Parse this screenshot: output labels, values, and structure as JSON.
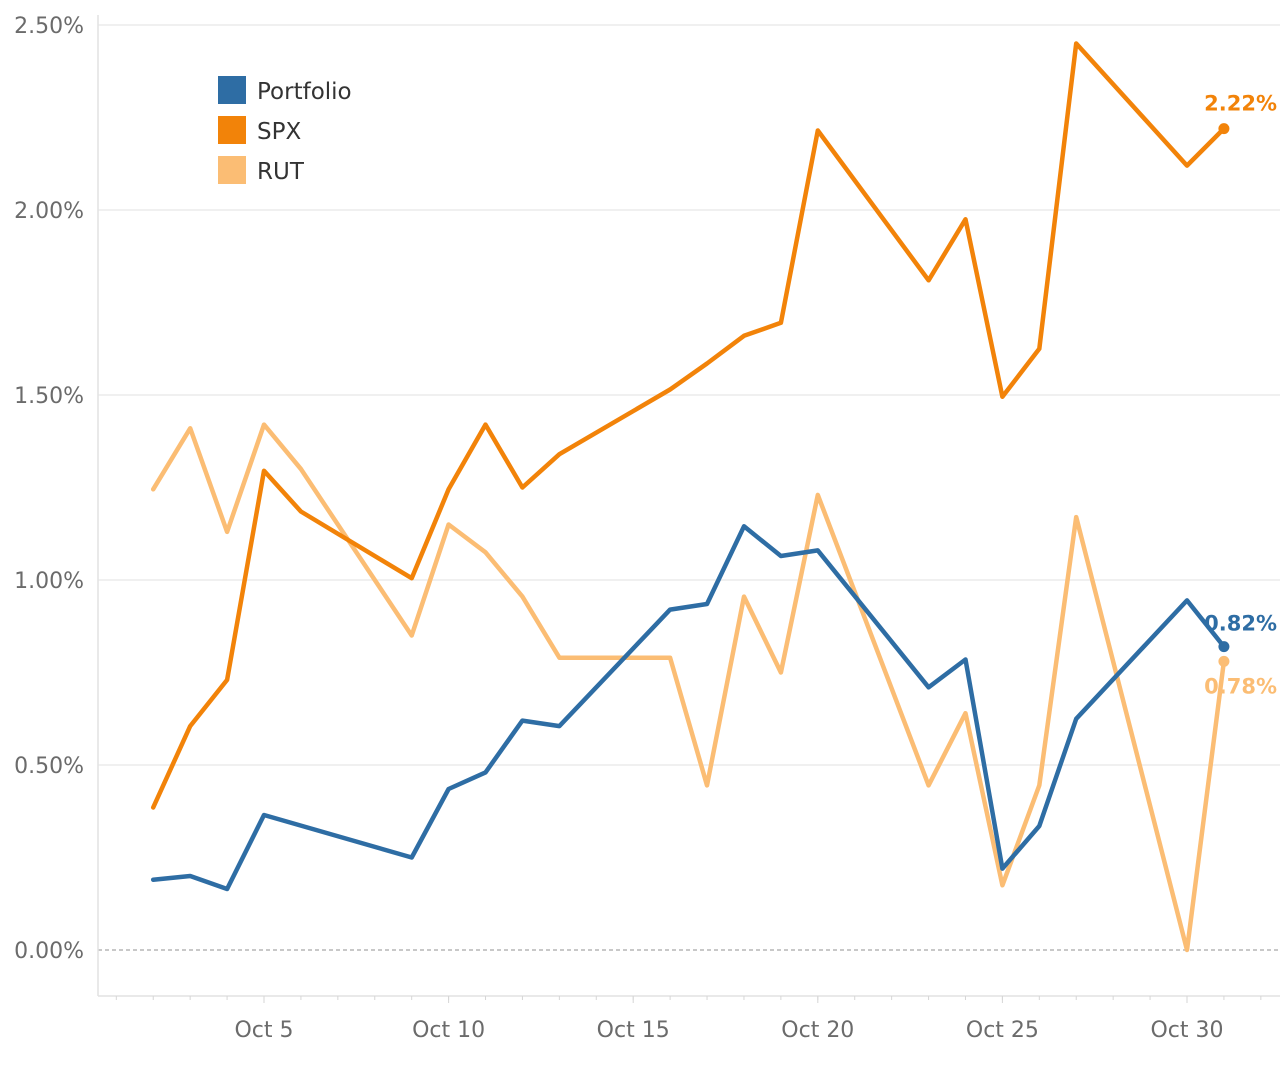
{
  "chart_data": {
    "type": "line",
    "title": "",
    "xlabel": "",
    "ylabel": "",
    "ylim": [
      0,
      2.5
    ],
    "yticks": [
      "0.00%",
      "0.50%",
      "1.00%",
      "1.50%",
      "2.00%",
      "2.50%"
    ],
    "xticks": [
      {
        "day": 5,
        "label": "Oct 5"
      },
      {
        "day": 10,
        "label": "Oct 10"
      },
      {
        "day": 15,
        "label": "Oct 15"
      },
      {
        "day": 20,
        "label": "Oct 20"
      },
      {
        "day": 25,
        "label": "Oct 25"
      },
      {
        "day": 30,
        "label": "Oct 30"
      }
    ],
    "xlim": [
      0.5,
      32.5
    ],
    "grid": true,
    "legend_position": "top-left",
    "series": [
      {
        "name": "Portfolio",
        "color": "#2e6da4",
        "end_label": "0.82%",
        "points": [
          [
            2,
            0.19
          ],
          [
            3,
            0.2
          ],
          [
            4,
            0.165
          ],
          [
            5,
            0.365
          ],
          [
            9,
            0.25
          ],
          [
            10,
            0.435
          ],
          [
            11,
            0.48
          ],
          [
            12,
            0.62
          ],
          [
            13,
            0.605
          ],
          [
            16,
            0.92
          ],
          [
            17,
            0.935
          ],
          [
            18,
            1.145
          ],
          [
            19,
            1.065
          ],
          [
            20,
            1.08
          ],
          [
            23,
            0.71
          ],
          [
            24,
            0.785
          ],
          [
            25,
            0.22
          ],
          [
            26,
            0.335
          ],
          [
            27,
            0.625
          ],
          [
            30,
            0.945
          ],
          [
            31,
            0.82
          ]
        ]
      },
      {
        "name": "SPX",
        "color": "#f28309",
        "end_label": "2.22%",
        "points": [
          [
            2,
            0.385
          ],
          [
            3,
            0.605
          ],
          [
            4,
            0.73
          ],
          [
            5,
            1.295
          ],
          [
            6,
            1.185
          ],
          [
            9,
            1.005
          ],
          [
            10,
            1.245
          ],
          [
            11,
            1.42
          ],
          [
            12,
            1.25
          ],
          [
            13,
            1.34
          ],
          [
            16,
            1.515
          ],
          [
            17,
            1.585
          ],
          [
            18,
            1.66
          ],
          [
            19,
            1.695
          ],
          [
            20,
            2.215
          ],
          [
            23,
            1.81
          ],
          [
            24,
            1.975
          ],
          [
            25,
            1.495
          ],
          [
            26,
            1.625
          ],
          [
            27,
            2.45
          ],
          [
            30,
            2.12
          ],
          [
            31,
            2.22
          ]
        ]
      },
      {
        "name": "RUT",
        "color": "#fbbd74",
        "end_label": "0.78%",
        "points": [
          [
            2,
            1.245
          ],
          [
            3,
            1.41
          ],
          [
            4,
            1.13
          ],
          [
            5,
            1.42
          ],
          [
            6,
            1.3
          ],
          [
            9,
            0.85
          ],
          [
            10,
            1.15
          ],
          [
            11,
            1.075
          ],
          [
            12,
            0.955
          ],
          [
            13,
            0.79
          ],
          [
            16,
            0.79
          ],
          [
            17,
            0.445
          ],
          [
            18,
            0.955
          ],
          [
            19,
            0.75
          ],
          [
            20,
            1.23
          ],
          [
            23,
            0.445
          ],
          [
            24,
            0.64
          ],
          [
            25,
            0.175
          ],
          [
            26,
            0.445
          ],
          [
            27,
            1.17
          ],
          [
            30,
            0.0
          ],
          [
            31,
            0.78
          ]
        ]
      }
    ]
  }
}
